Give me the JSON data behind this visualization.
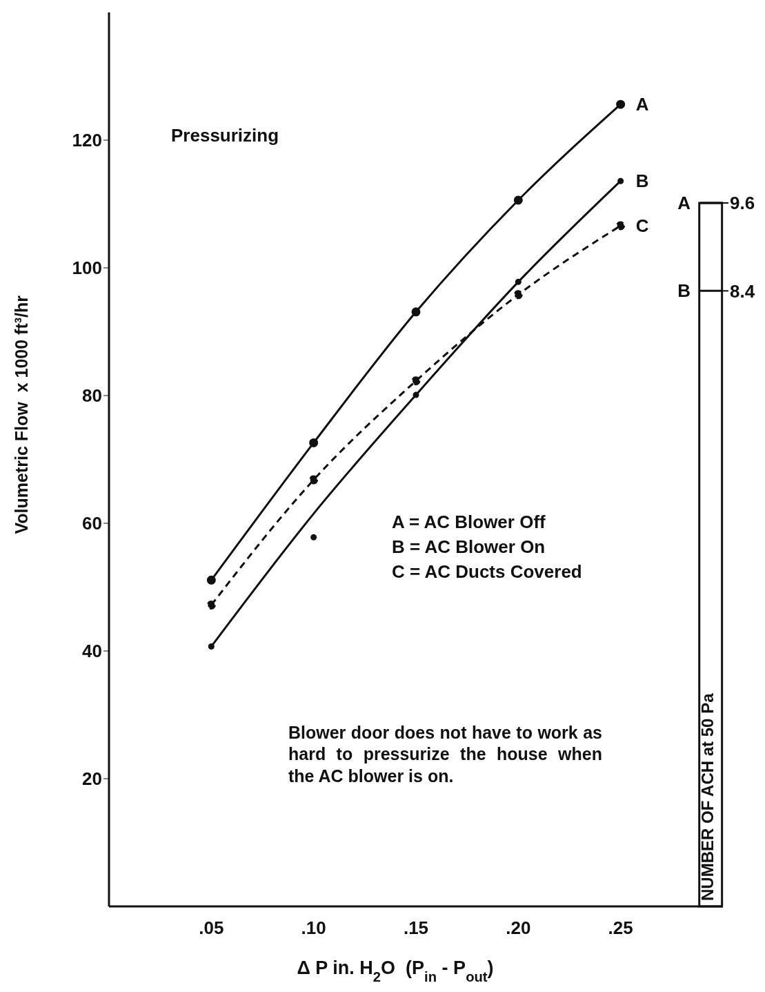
{
  "chart_data": {
    "type": "line",
    "xlabel": "Δ P in. H$_{2}$O  (P$_{in}$ - P$_{out}$)",
    "ylabel": "Volumetric Flow  x 1000 ft³/hr",
    "y2label": "NUMBER OF ACH at 50 Pa",
    "annotations": [
      "Pressurizing",
      "A = AC Blower Off",
      "B = AC Blower On",
      "C = AC Ducts Covered",
      "Blower door does not have to work as hard to pressurize the house when the AC blower is on."
    ],
    "xlim": [
      0,
      0.3
    ],
    "xticks": [
      {
        "value": 0.05,
        "label": ".05"
      },
      {
        "value": 0.1,
        "label": ".10"
      },
      {
        "value": 0.15,
        "label": ".15"
      },
      {
        "value": 0.2,
        "label": ".20"
      },
      {
        "value": 0.25,
        "label": ".25"
      }
    ],
    "ylim": [
      0,
      140
    ],
    "yticks": [
      20,
      40,
      60,
      80,
      100,
      120
    ],
    "y2lim": [
      0,
      12.2
    ],
    "y2ticks": [
      9.6,
      8.4
    ],
    "ref_lines": [
      {
        "axis": "y2",
        "value": 9.6,
        "label": "A"
      },
      {
        "axis": "y2",
        "value": 8.4,
        "label": "B"
      }
    ],
    "grid": false,
    "legend": false,
    "series": [
      {
        "name": "A",
        "color": "#111111",
        "marker": "circle",
        "line_style": "solid",
        "x": [
          0.05,
          0.1,
          0.15,
          0.2,
          0.25
        ],
        "values": [
          51.1,
          72.6,
          93.1,
          110.6,
          125.6
        ]
      },
      {
        "name": "B",
        "color": "#111111",
        "marker": "none",
        "line_style": "solid",
        "x": [
          0.05,
          0.1,
          0.15,
          0.2,
          0.25
        ],
        "values": [
          40.7,
          61.5,
          80.1,
          97.8,
          113.6
        ]
      },
      {
        "type": "scatter",
        "color": "#111111",
        "marker": "circle",
        "x": [
          0.05,
          0.1,
          0.15,
          0.2,
          0.25
        ],
        "values": [
          40.7,
          57.8,
          80.1,
          97.8,
          113.6
        ]
      },
      {
        "type": "bar",
        "axis": "y2",
        "color": "#ffffff",
        "x": [
          0.294
        ],
        "values": [
          9.6
        ]
      },
      {
        "name": "C",
        "color": "#111111",
        "marker": "circle",
        "line_style": "dashed",
        "x": [
          0.05,
          0.1,
          0.15,
          0.2,
          0.25
        ],
        "values": [
          47.2,
          66.8,
          82.3,
          95.8,
          106.6
        ]
      }
    ]
  }
}
